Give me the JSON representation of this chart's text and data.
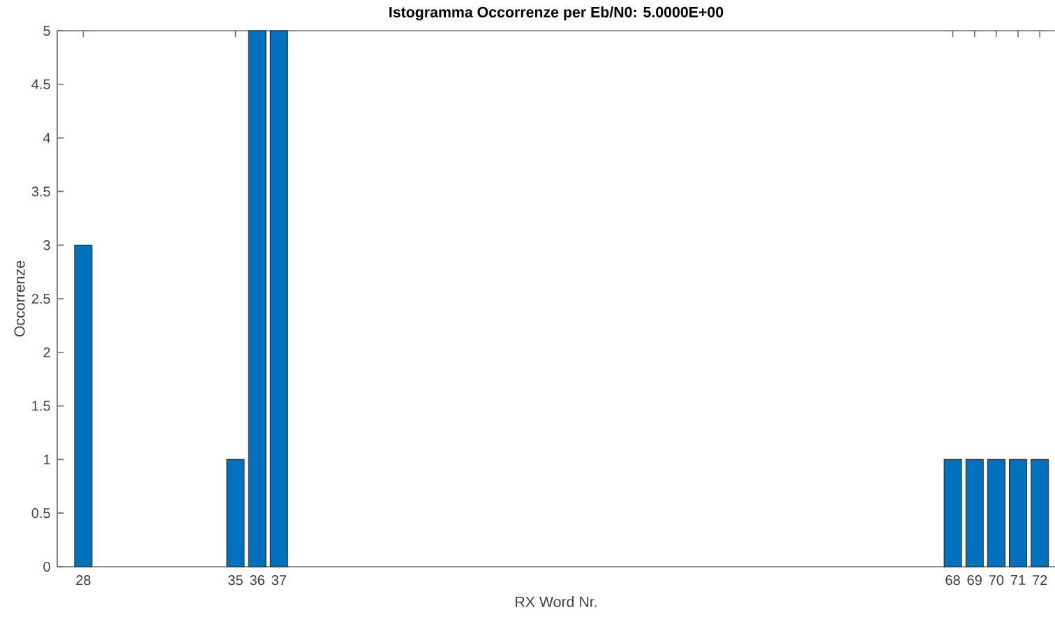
{
  "chart_data": {
    "type": "bar",
    "title": "Istogramma Occorrenze per Eb/N0: 5.0000E+00",
    "xlabel": "RX Word Nr.",
    "ylabel": "Occorrenze",
    "x": [
      28,
      35,
      36,
      37,
      68,
      69,
      70,
      71,
      72
    ],
    "values": [
      3,
      1,
      5,
      5,
      1,
      1,
      1,
      1,
      1
    ],
    "color": "#0072bd",
    "xlim": [
      26.8,
      72.7
    ],
    "xticks": [
      28,
      35,
      36,
      37,
      68,
      69,
      70,
      71,
      72
    ],
    "ylim": [
      0,
      5
    ],
    "yticks": [
      0,
      0.5,
      1,
      1.5,
      2,
      2.5,
      3,
      3.5,
      4,
      4.5,
      5
    ]
  }
}
